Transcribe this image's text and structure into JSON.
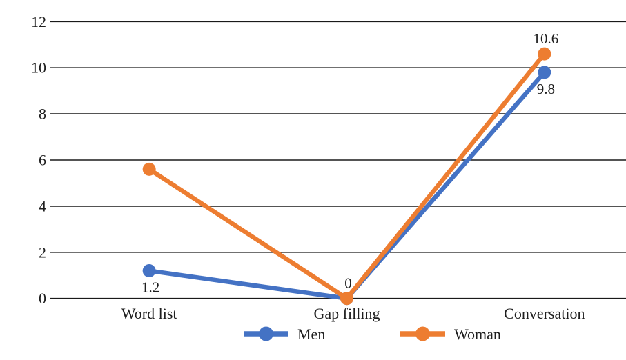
{
  "canvas": {
    "background": "#ffffff"
  },
  "chart_data": {
    "type": "line",
    "title": "",
    "xlabel": "",
    "ylabel": "",
    "categories": [
      "Word list",
      "Gap filling",
      "Conversation"
    ],
    "series": [
      {
        "name": "Men",
        "color": "#4472C4",
        "values": [
          1.2,
          0,
          9.8
        ],
        "point_labels": [
          {
            "index": 0,
            "text": "1.2",
            "position": "below"
          },
          {
            "index": 2,
            "text": "9.8",
            "position": "below"
          }
        ]
      },
      {
        "name": "Woman",
        "color": "#ED7D31",
        "values": [
          5.6,
          0,
          10.6
        ],
        "point_labels": [
          {
            "index": 1,
            "text": "0",
            "position": "above"
          },
          {
            "index": 2,
            "text": "10.6",
            "position": "above"
          }
        ]
      }
    ],
    "ylim": [
      0,
      12
    ],
    "yticks": [
      0,
      2,
      4,
      6,
      8,
      10,
      12
    ],
    "grid": true,
    "legend_position": "bottom",
    "colors": {
      "text": "#1e1e1e",
      "gridline": "#1a1a1a"
    }
  }
}
